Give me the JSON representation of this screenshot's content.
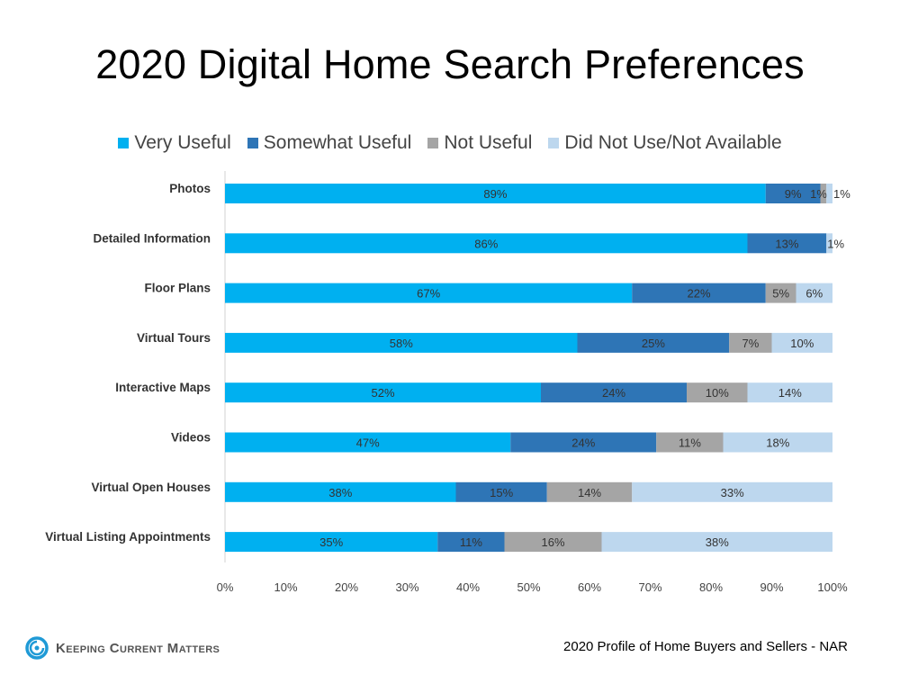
{
  "title": "2020 Digital Home Search Preferences",
  "source": "2020 Profile of Home Buyers and Sellers - NAR",
  "logo": {
    "text": "Keeping Current Matters",
    "icon": "kcm-swirl-icon"
  },
  "chart_data": {
    "type": "bar",
    "orientation": "horizontal",
    "stacked": true,
    "title": "2020 Digital Home Search Preferences",
    "legend_placement": "top",
    "grid": false,
    "xlim": [
      0,
      100
    ],
    "x_ticks": [
      "0%",
      "10%",
      "20%",
      "30%",
      "40%",
      "50%",
      "60%",
      "70%",
      "80%",
      "90%",
      "100%"
    ],
    "categories": [
      "Photos",
      "Detailed Information",
      "Floor Plans",
      "Virtual Tours",
      "Interactive Maps",
      "Videos",
      "Virtual Open Houses",
      "Virtual Listing Appointments"
    ],
    "series": [
      {
        "name": "Very Useful",
        "color": "#00B0F0",
        "values": [
          89,
          86,
          67,
          58,
          52,
          47,
          38,
          35
        ],
        "labels": [
          "89%",
          "86%",
          "67%",
          "58%",
          "52%",
          "47%",
          "38%",
          "35%"
        ]
      },
      {
        "name": "Somewhat Useful",
        "color": "#2E75B6",
        "values": [
          9,
          13,
          22,
          25,
          24,
          24,
          15,
          11
        ],
        "labels": [
          "9%",
          "13%",
          "22%",
          "25%",
          "24%",
          "24%",
          "15%",
          "11%"
        ]
      },
      {
        "name": "Not Useful",
        "color": "#A5A5A5",
        "values": [
          1,
          0,
          5,
          7,
          10,
          11,
          14,
          16
        ],
        "labels": [
          "1%",
          "",
          "5%",
          "7%",
          "10%",
          "11%",
          "14%",
          "16%"
        ]
      },
      {
        "name": "Did Not Use/Not Available",
        "color": "#BDD7EE",
        "values": [
          1,
          1,
          6,
          10,
          14,
          18,
          33,
          38
        ],
        "labels": [
          "1%",
          "1%",
          "6%",
          "10%",
          "14%",
          "18%",
          "33%",
          "38%"
        ]
      }
    ]
  }
}
